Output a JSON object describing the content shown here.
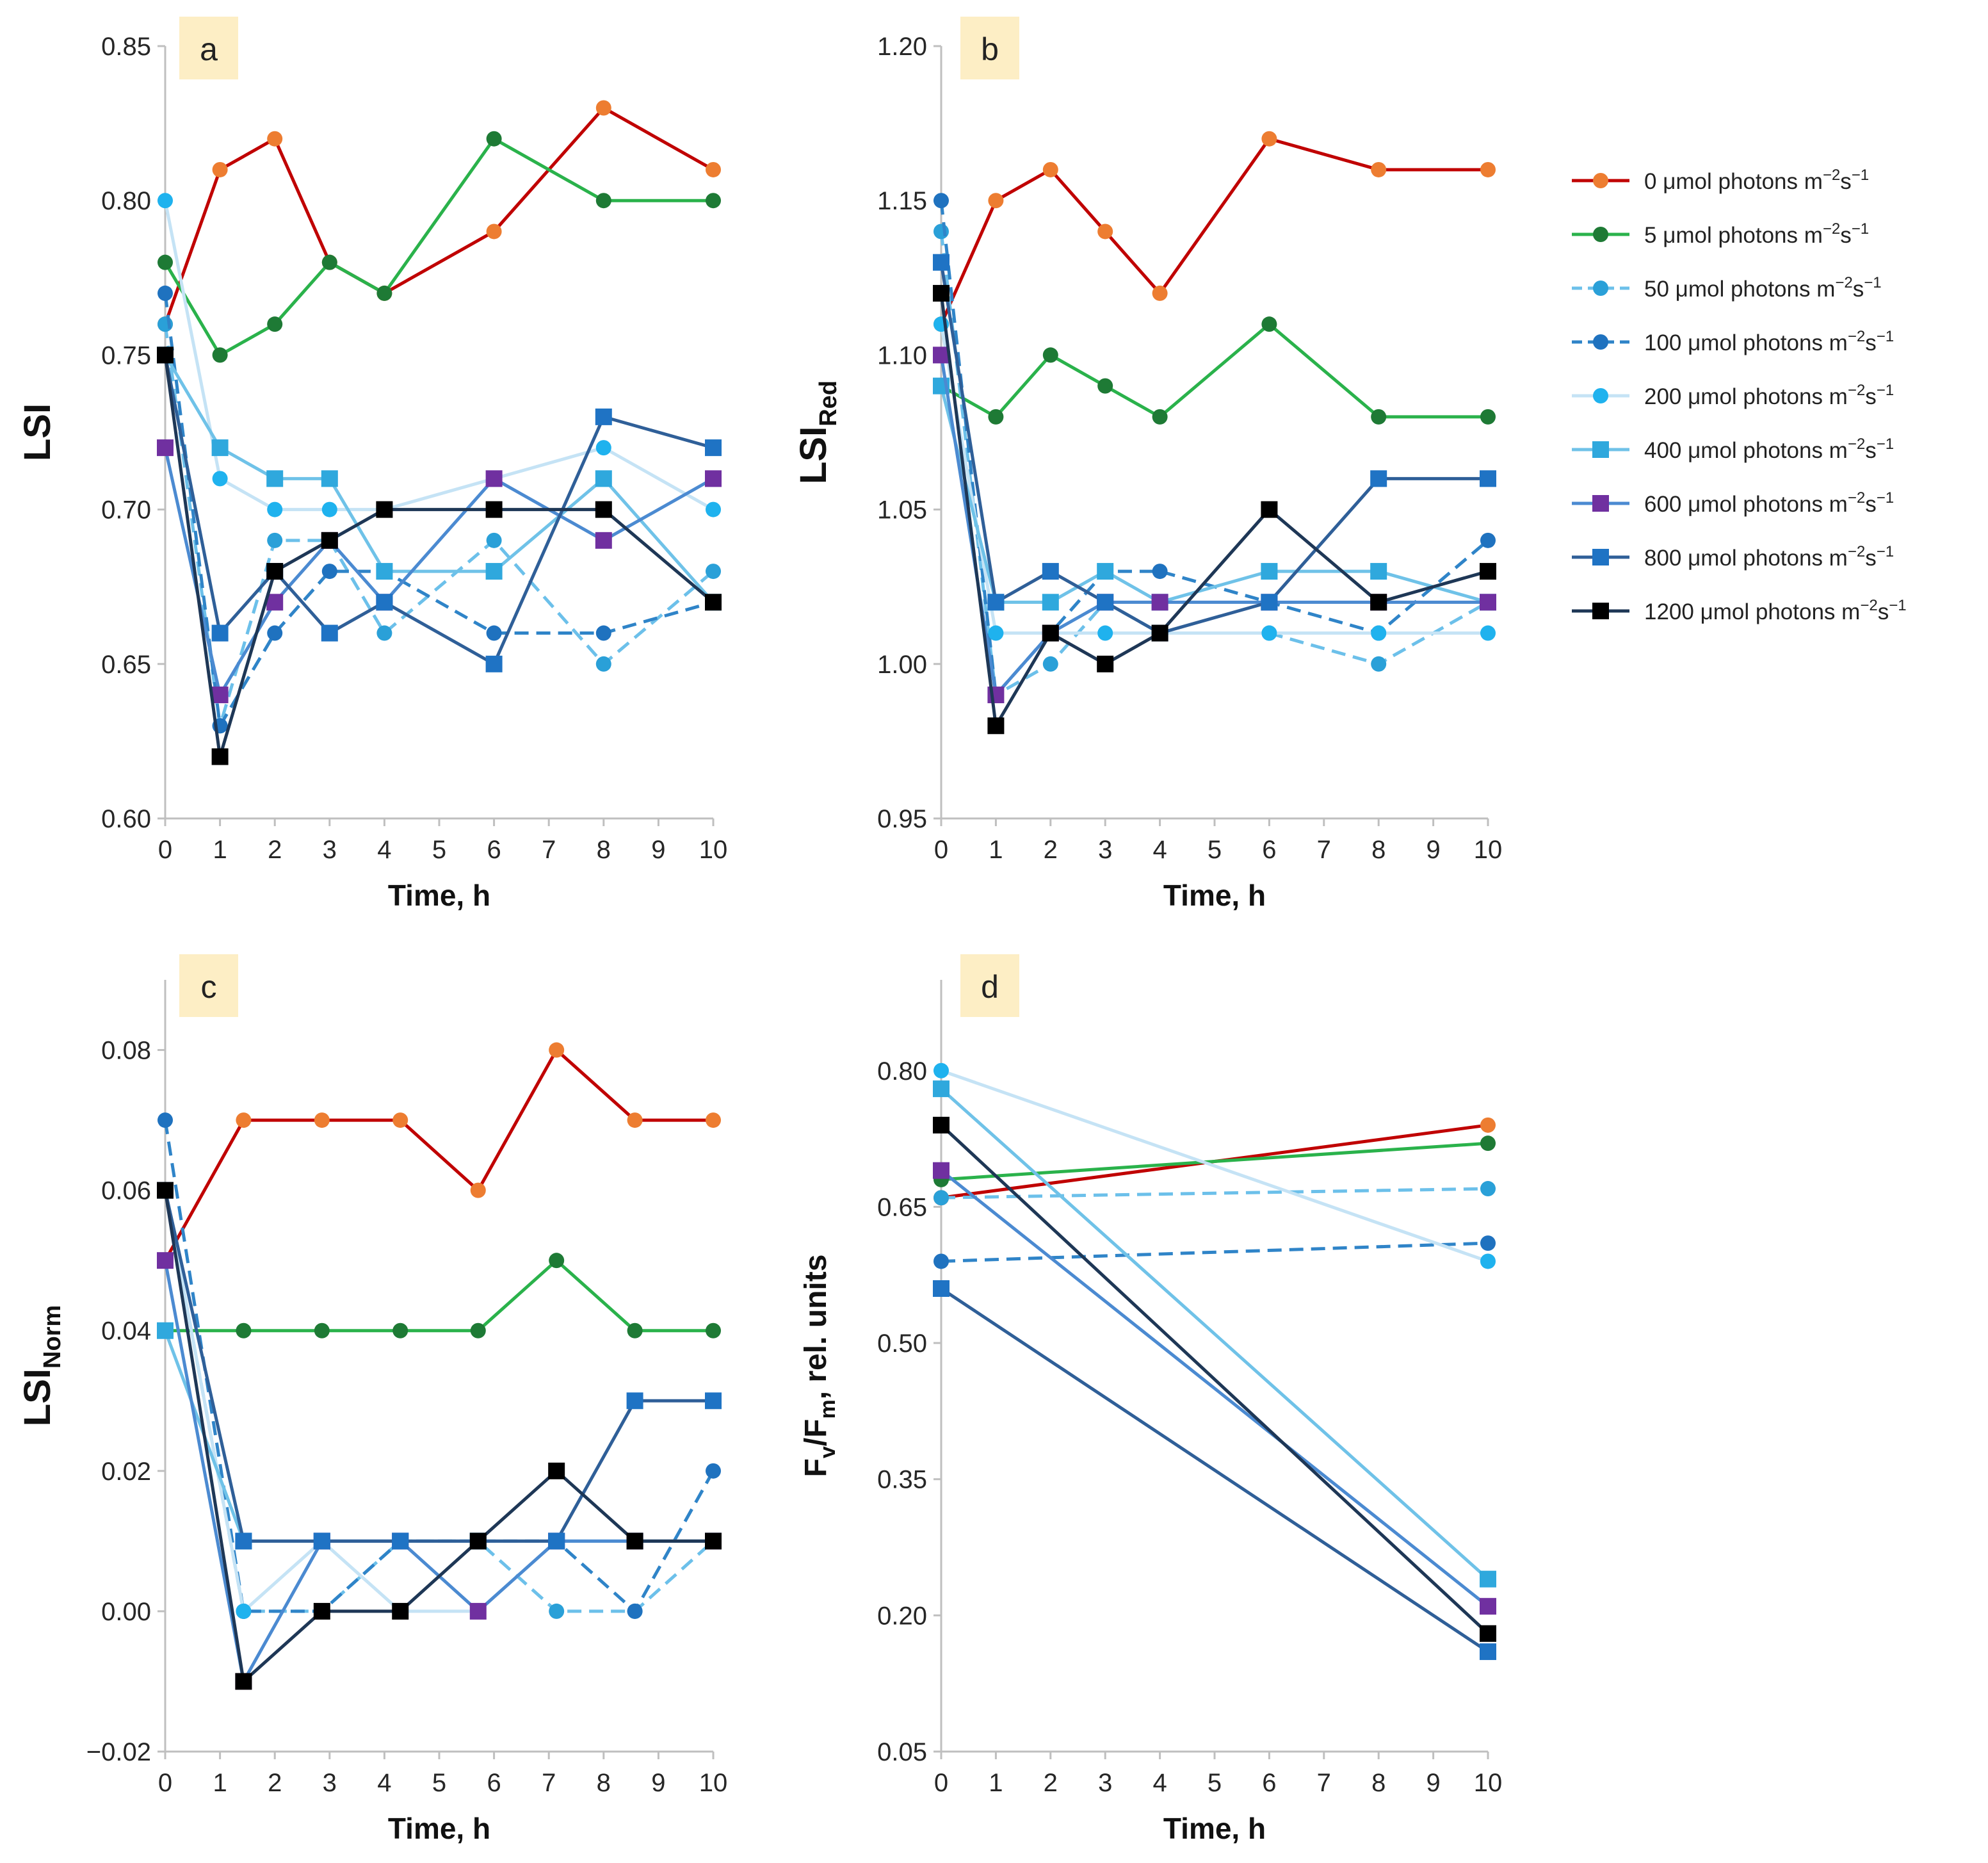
{
  "colors": {
    "axis": "#bfbfbf",
    "label_bg": "#fdeec5",
    "s0": "#c00000",
    "m0": "#ed7d31",
    "s5": "#2ab24b",
    "m5": "#1e7a35",
    "s50": "#6cc0ea",
    "m50": "#2aa0d8",
    "s100": "#2f84c8",
    "m100": "#1f72bf",
    "s200": "#c5e3f5",
    "m200": "#1fb2ee",
    "s400": "#6fc2e8",
    "m400": "#2fa8dd",
    "s600": "#4b8ad1",
    "m600": "#7030a0",
    "s800": "#2f5f98",
    "m800": "#1f73c4",
    "s1200": "#1e3756",
    "m1200": "#000000"
  },
  "legend": [
    {
      "key": "s0",
      "label_main": "0 μmol photons m",
      "sup1": "−2",
      "mid": "s",
      "sup2": "−1",
      "dash": false,
      "marker": "circle"
    },
    {
      "key": "s5",
      "label_main": "5 μmol photons m",
      "sup1": "−2",
      "mid": "s",
      "sup2": "−1",
      "dash": false,
      "marker": "circle"
    },
    {
      "key": "s50",
      "label_main": "50 μmol photons m",
      "sup1": "−2",
      "mid": "s",
      "sup2": "−1",
      "dash": true,
      "marker": "circle"
    },
    {
      "key": "s100",
      "label_main": "100 μmol photons m",
      "sup1": "−2",
      "mid": "s",
      "sup2": "−1",
      "dash": true,
      "marker": "circle"
    },
    {
      "key": "s200",
      "label_main": "200 μmol photons m",
      "sup1": "−2",
      "mid": "s",
      "sup2": "−1",
      "dash": false,
      "marker": "circle"
    },
    {
      "key": "s400",
      "label_main": "400 μmol photons m",
      "sup1": "−2",
      "mid": "s",
      "sup2": "−1",
      "dash": false,
      "marker": "square"
    },
    {
      "key": "s600",
      "label_main": "600 μmol photons m",
      "sup1": "−2",
      "mid": "s",
      "sup2": "−1",
      "dash": false,
      "marker": "square"
    },
    {
      "key": "s800",
      "label_main": "800 μmol photons m",
      "sup1": "−2",
      "mid": "s",
      "sup2": "−1",
      "dash": false,
      "marker": "square"
    },
    {
      "key": "s1200",
      "label_main": "1200 μmol photons m",
      "sup1": "−2",
      "mid": "s",
      "sup2": "−1",
      "dash": false,
      "marker": "square"
    }
  ],
  "chart_data": [
    {
      "panel": "a",
      "type": "line",
      "ylabel": {
        "main": "LSI",
        "sub": ""
      },
      "xlabel": "Time, h",
      "xticks": [
        0,
        1,
        2,
        3,
        4,
        5,
        6,
        7,
        8,
        9,
        10
      ],
      "ylim": [
        0.6,
        0.85
      ],
      "yticks": [
        "0.60",
        "0.65",
        "0.70",
        "0.75",
        "0.80",
        "0.85"
      ],
      "series": [
        {
          "key": "s0",
          "x": [
            0,
            1,
            2,
            3,
            4,
            6,
            8,
            10
          ],
          "y": [
            0.76,
            0.81,
            0.82,
            0.78,
            0.77,
            0.79,
            0.83,
            0.81
          ]
        },
        {
          "key": "s5",
          "x": [
            0,
            1,
            2,
            3,
            4,
            6,
            8,
            10
          ],
          "y": [
            0.78,
            0.75,
            0.76,
            0.78,
            0.77,
            0.82,
            0.8,
            0.8
          ]
        },
        {
          "key": "s50",
          "x": [
            0,
            1,
            2,
            3,
            4,
            6,
            8,
            10
          ],
          "y": [
            0.76,
            0.63,
            0.69,
            0.69,
            0.66,
            0.69,
            0.65,
            0.68
          ]
        },
        {
          "key": "s100",
          "x": [
            0,
            1,
            2,
            3,
            4,
            6,
            8,
            10
          ],
          "y": [
            0.77,
            0.63,
            0.66,
            0.68,
            0.68,
            0.66,
            0.66,
            0.67
          ]
        },
        {
          "key": "s200",
          "x": [
            0,
            1,
            2,
            3,
            4,
            6,
            8,
            10
          ],
          "y": [
            0.8,
            0.71,
            0.7,
            0.7,
            0.7,
            0.71,
            0.72,
            0.7
          ]
        },
        {
          "key": "s400",
          "x": [
            0,
            1,
            2,
            3,
            4,
            6,
            8,
            10
          ],
          "y": [
            0.75,
            0.72,
            0.71,
            0.71,
            0.68,
            0.68,
            0.71,
            0.67
          ]
        },
        {
          "key": "s600",
          "x": [
            0,
            1,
            2,
            3,
            4,
            6,
            8,
            10
          ],
          "y": [
            0.72,
            0.64,
            0.67,
            0.69,
            0.67,
            0.71,
            0.69,
            0.71
          ]
        },
        {
          "key": "s800",
          "x": [
            0,
            1,
            2,
            3,
            4,
            6,
            8,
            10
          ],
          "y": [
            0.75,
            0.66,
            0.68,
            0.66,
            0.67,
            0.65,
            0.73,
            0.72
          ]
        },
        {
          "key": "s1200",
          "x": [
            0,
            1,
            2,
            3,
            4,
            6,
            8,
            10
          ],
          "y": [
            0.75,
            0.62,
            0.68,
            0.69,
            0.7,
            0.7,
            0.7,
            0.67
          ]
        }
      ]
    },
    {
      "panel": "b",
      "type": "line",
      "ylabel": {
        "main": "LSI",
        "sub": "Red"
      },
      "xlabel": "Time, h",
      "xticks": [
        0,
        1,
        2,
        3,
        4,
        5,
        6,
        7,
        8,
        9,
        10
      ],
      "ylim": [
        0.95,
        1.2
      ],
      "yticks": [
        "0.95",
        "1.00",
        "1.05",
        "1.10",
        "1.15",
        "1.20"
      ],
      "series": [
        {
          "key": "s0",
          "x": [
            0,
            1,
            2,
            3,
            4,
            6,
            8,
            10
          ],
          "y": [
            1.11,
            1.15,
            1.16,
            1.14,
            1.12,
            1.17,
            1.16,
            1.16
          ]
        },
        {
          "key": "s5",
          "x": [
            0,
            1,
            2,
            3,
            4,
            6,
            8,
            10
          ],
          "y": [
            1.09,
            1.08,
            1.1,
            1.09,
            1.08,
            1.11,
            1.08,
            1.08
          ]
        },
        {
          "key": "s50",
          "x": [
            0,
            1,
            2,
            3,
            4,
            6,
            8,
            10
          ],
          "y": [
            1.14,
            0.99,
            1.0,
            1.02,
            1.01,
            1.01,
            1.0,
            1.02
          ]
        },
        {
          "key": "s100",
          "x": [
            0,
            1,
            2,
            3,
            4,
            6,
            8,
            10
          ],
          "y": [
            1.15,
            0.99,
            1.01,
            1.03,
            1.03,
            1.02,
            1.01,
            1.04
          ]
        },
        {
          "key": "s200",
          "x": [
            0,
            1,
            2,
            3,
            4,
            6,
            8,
            10
          ],
          "y": [
            1.11,
            1.01,
            1.01,
            1.01,
            1.01,
            1.01,
            1.01,
            1.01
          ]
        },
        {
          "key": "s400",
          "x": [
            0,
            1,
            2,
            3,
            4,
            6,
            8,
            10
          ],
          "y": [
            1.09,
            1.02,
            1.02,
            1.03,
            1.02,
            1.03,
            1.03,
            1.02
          ]
        },
        {
          "key": "s600",
          "x": [
            0,
            1,
            2,
            3,
            4,
            6,
            8,
            10
          ],
          "y": [
            1.1,
            0.99,
            1.01,
            1.02,
            1.02,
            1.02,
            1.02,
            1.02
          ]
        },
        {
          "key": "s800",
          "x": [
            0,
            1,
            2,
            3,
            4,
            6,
            8,
            10
          ],
          "y": [
            1.13,
            1.02,
            1.03,
            1.02,
            1.01,
            1.02,
            1.06,
            1.06
          ]
        },
        {
          "key": "s1200",
          "x": [
            0,
            1,
            2,
            3,
            4,
            6,
            8,
            10
          ],
          "y": [
            1.12,
            0.98,
            1.01,
            1.0,
            1.01,
            1.05,
            1.02,
            1.03
          ]
        }
      ]
    },
    {
      "panel": "c",
      "type": "line",
      "ylabel": {
        "main": "LSI",
        "sub": "Norm"
      },
      "xlabel": "Time, h",
      "xticks": [
        0,
        1,
        2,
        3,
        4,
        5,
        6,
        7,
        8,
        9,
        10
      ],
      "ylim": [
        -0.02,
        0.09
      ],
      "yticks": [
        "−0.02",
        "0.00",
        "0.02",
        "0.04",
        "0.06",
        "0.08"
      ],
      "ytick_values": [
        -0.02,
        0.0,
        0.02,
        0.04,
        0.06,
        0.08
      ],
      "series": [
        {
          "key": "s0",
          "x": [
            0,
            1.43,
            2.86,
            4.29,
            5.71,
            7.14,
            8.57,
            10
          ],
          "y": [
            0.05,
            0.07,
            0.07,
            0.07,
            0.06,
            0.08,
            0.07,
            0.07
          ]
        },
        {
          "key": "s5",
          "x": [
            0,
            1.43,
            2.86,
            4.29,
            5.71,
            7.14,
            8.57,
            10
          ],
          "y": [
            0.04,
            0.04,
            0.04,
            0.04,
            0.04,
            0.05,
            0.04,
            0.04
          ]
        },
        {
          "key": "s50",
          "x": [
            0,
            1.43,
            2.86,
            4.29,
            5.71,
            7.14,
            8.57,
            10
          ],
          "y": [
            0.06,
            0.0,
            0.0,
            0.01,
            0.01,
            0.0,
            0.0,
            0.01
          ]
        },
        {
          "key": "s100",
          "x": [
            0,
            1.43,
            2.86,
            4.29,
            5.71,
            7.14,
            8.57,
            10
          ],
          "y": [
            0.07,
            0.0,
            0.0,
            0.01,
            0.01,
            0.01,
            0.0,
            0.02
          ]
        },
        {
          "key": "s200",
          "x": [
            0,
            1.43,
            2.86,
            4.29,
            5.71,
            7.14,
            8.57,
            10
          ],
          "y": [
            0.06,
            0.0,
            0.01,
            0.0,
            0.0,
            0.01,
            0.01,
            0.01
          ]
        },
        {
          "key": "s400",
          "x": [
            0,
            1.43,
            2.86,
            4.29,
            5.71,
            7.14,
            8.57,
            10
          ],
          "y": [
            0.04,
            0.01,
            0.01,
            0.01,
            0.01,
            0.01,
            0.01,
            0.01
          ]
        },
        {
          "key": "s600",
          "x": [
            0,
            1.43,
            2.86,
            4.29,
            5.71,
            7.14,
            8.57,
            10
          ],
          "y": [
            0.05,
            -0.01,
            0.01,
            0.01,
            0.0,
            0.01,
            0.01,
            0.01
          ]
        },
        {
          "key": "s800",
          "x": [
            0,
            1.43,
            2.86,
            4.29,
            5.71,
            7.14,
            8.57,
            10
          ],
          "y": [
            0.06,
            0.01,
            0.01,
            0.01,
            0.01,
            0.01,
            0.03,
            0.03
          ]
        },
        {
          "key": "s1200",
          "x": [
            0,
            1.43,
            2.86,
            4.29,
            5.71,
            7.14,
            8.57,
            10
          ],
          "y": [
            0.06,
            -0.01,
            0.0,
            0.0,
            0.01,
            0.02,
            0.01,
            0.01
          ]
        }
      ]
    },
    {
      "panel": "d",
      "type": "line",
      "ylabel": {
        "main": "F",
        "sub1": "v",
        "mid": "/F",
        "sub2": "m",
        "tail": ", rel. units"
      },
      "xlabel": "Time, h",
      "xticks": [
        0,
        1,
        2,
        3,
        4,
        5,
        6,
        7,
        8,
        9,
        10
      ],
      "ylim": [
        0.05,
        0.9
      ],
      "yticks": [
        "0.05",
        "0.20",
        "0.35",
        "0.50",
        "0.65",
        "0.80"
      ],
      "series": [
        {
          "key": "s0",
          "x": [
            0,
            10
          ],
          "y": [
            0.66,
            0.74
          ]
        },
        {
          "key": "s5",
          "x": [
            0,
            10
          ],
          "y": [
            0.68,
            0.72
          ]
        },
        {
          "key": "s50",
          "x": [
            0,
            10
          ],
          "y": [
            0.66,
            0.67
          ]
        },
        {
          "key": "s100",
          "x": [
            0,
            10
          ],
          "y": [
            0.59,
            0.61
          ]
        },
        {
          "key": "s200",
          "x": [
            0,
            10
          ],
          "y": [
            0.8,
            0.59
          ]
        },
        {
          "key": "s400",
          "x": [
            0,
            10
          ],
          "y": [
            0.78,
            0.24
          ]
        },
        {
          "key": "s600",
          "x": [
            0,
            10
          ],
          "y": [
            0.69,
            0.21
          ]
        },
        {
          "key": "s800",
          "x": [
            0,
            10
          ],
          "y": [
            0.56,
            0.16
          ]
        },
        {
          "key": "s1200",
          "x": [
            0,
            10
          ],
          "y": [
            0.74,
            0.18
          ]
        }
      ]
    }
  ]
}
